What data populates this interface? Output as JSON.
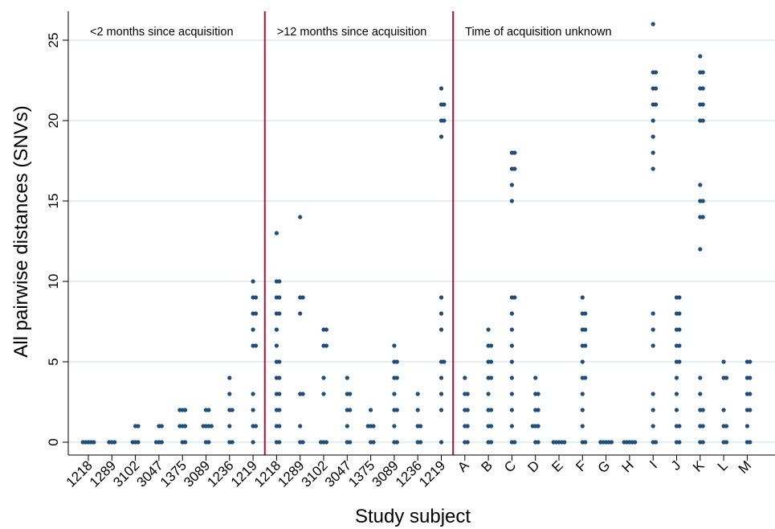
{
  "chart_data": {
    "type": "scatter",
    "title": "",
    "xlabel": "Study subject",
    "ylabel": "All pairwise distances (SNVs)",
    "ylim": [
      -0.8,
      26.8
    ],
    "yticks": [
      0,
      5,
      10,
      15,
      20,
      25
    ],
    "grid": true,
    "colors": {
      "point": "#1f4e79",
      "divider": "#b2102f",
      "grid": "#dfe9ee",
      "axis": "#000000"
    },
    "groups": [
      {
        "label": "<2 months since acquisition",
        "start": 0
      },
      {
        "label": ">12 months since acquisition",
        "start": 8
      },
      {
        "label": "Time of acquisition unknown",
        "start": 16
      }
    ],
    "categories": [
      "1218",
      "1289",
      "3102",
      "3047",
      "1375",
      "3089",
      "1236",
      "1219",
      "1218",
      "1289",
      "3102",
      "3047",
      "1375",
      "3089",
      "1236",
      "1219",
      "A",
      "B",
      "C",
      "D",
      "E",
      "F",
      "G",
      "H",
      "I",
      "J",
      "K",
      "L",
      "M"
    ],
    "points": [
      [
        0,
        0,
        0,
        0,
        0
      ],
      [
        0,
        0,
        0
      ],
      [
        0,
        0,
        0,
        1,
        1
      ],
      [
        0,
        0,
        0,
        1,
        1
      ],
      [
        0,
        0,
        1,
        1,
        1,
        2,
        2,
        2
      ],
      [
        0,
        0,
        1,
        1,
        1,
        1,
        2,
        2
      ],
      [
        0,
        0,
        1,
        2,
        2,
        3,
        4
      ],
      [
        0,
        1,
        1,
        2,
        3,
        6,
        6,
        7,
        8,
        8,
        9,
        9,
        10
      ],
      [
        0,
        0,
        1,
        1,
        2,
        2,
        3,
        3,
        4,
        4,
        5,
        5,
        6,
        7,
        8,
        8,
        9,
        9,
        10,
        10,
        13
      ],
      [
        0,
        0,
        1,
        3,
        3,
        8,
        9,
        9,
        14
      ],
      [
        0,
        0,
        0,
        3,
        4,
        6,
        6,
        7,
        7
      ],
      [
        0,
        0,
        1,
        2,
        2,
        3,
        3,
        4
      ],
      [
        0,
        0,
        1,
        1,
        1,
        2
      ],
      [
        0,
        0,
        1,
        2,
        2,
        3,
        4,
        4,
        5,
        5,
        6
      ],
      [
        0,
        0,
        1,
        1,
        2,
        3
      ],
      [
        0,
        2,
        3,
        4,
        5,
        5,
        7,
        8,
        9,
        19,
        20,
        20,
        21,
        21,
        22
      ],
      [
        0,
        0,
        1,
        1,
        2,
        2,
        3,
        3,
        4
      ],
      [
        0,
        0,
        1,
        1,
        2,
        2,
        3,
        4,
        4,
        5,
        5,
        6,
        6,
        7
      ],
      [
        0,
        0,
        1,
        2,
        3,
        4,
        5,
        6,
        7,
        8,
        9,
        9,
        15,
        16,
        17,
        17,
        18,
        18
      ],
      [
        0,
        0,
        1,
        1,
        1,
        2,
        2,
        3,
        3,
        4
      ],
      [
        0,
        0,
        0,
        0,
        0
      ],
      [
        0,
        0,
        1,
        2,
        3,
        4,
        4,
        5,
        6,
        6,
        7,
        7,
        8,
        8,
        9
      ],
      [
        0,
        0,
        0,
        0,
        0
      ],
      [
        0,
        0,
        0,
        0,
        0
      ],
      [
        0,
        0,
        1,
        2,
        3,
        6,
        7,
        8,
        17,
        18,
        19,
        20,
        21,
        21,
        22,
        22,
        23,
        23,
        26
      ],
      [
        0,
        0,
        1,
        1,
        2,
        3,
        4,
        5,
        5,
        6,
        6,
        7,
        7,
        8,
        8,
        9,
        9
      ],
      [
        0,
        0,
        1,
        1,
        2,
        2,
        3,
        4,
        12,
        14,
        14,
        15,
        15,
        16,
        20,
        20,
        21,
        21,
        22,
        22,
        23,
        23,
        24
      ],
      [
        0,
        0,
        1,
        1,
        2,
        4,
        4,
        5
      ],
      [
        0,
        0,
        1,
        2,
        2,
        3,
        3,
        4,
        4,
        5,
        5
      ]
    ]
  }
}
